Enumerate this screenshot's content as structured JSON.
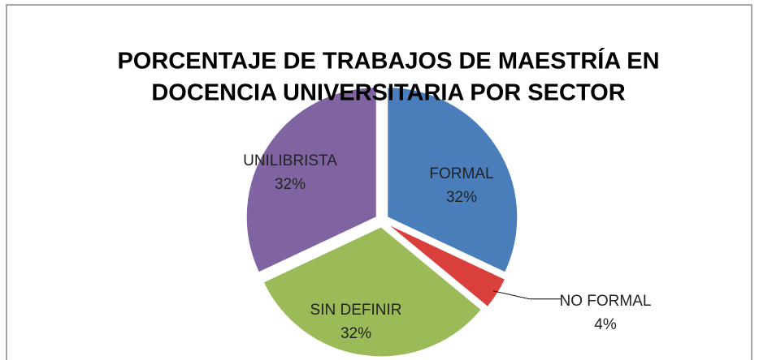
{
  "chart_data": {
    "type": "pie",
    "title": [
      "PORCENTAJE DE TRABAJOS DE MAESTRÍA EN",
      "DOCENCIA UNIVERSITARIA POR SECTOR"
    ],
    "categories": [
      "FORMAL",
      "NO FORMAL",
      "SIN DEFINIR",
      "UNILIBRISTA"
    ],
    "values": [
      32,
      4,
      32,
      32
    ],
    "value_labels": [
      "32%",
      "4%",
      "32%",
      "32%"
    ],
    "colors": [
      "#4a7ebb",
      "#d9403c",
      "#9bbb59",
      "#8064a2"
    ]
  }
}
